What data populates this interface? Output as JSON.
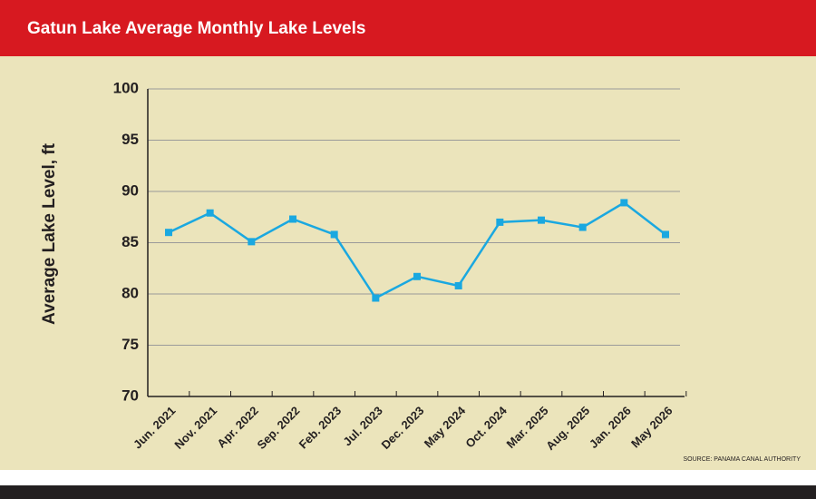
{
  "chart_data": {
    "type": "line",
    "title": "Gatun Lake Average Monthly Lake Levels",
    "y_label": "Average Lake Level, ft",
    "source": "SOURCE: PANAMA CANAL AUTHORITY",
    "categories": [
      "Jun. 2021",
      "Nov. 2021",
      "Apr. 2022",
      "Sep. 2022",
      "Feb. 2023",
      "Jul. 2023",
      "Dec. 2023",
      "May 2024",
      "Oct. 2024",
      "Mar. 2025",
      "Aug. 2025",
      "Jan. 2026",
      "May 2026"
    ],
    "values": [
      86.0,
      87.9,
      85.1,
      87.3,
      85.8,
      79.6,
      81.7,
      80.8,
      87.0,
      87.2,
      86.5,
      88.9,
      85.8
    ],
    "color": "#1aa8e0",
    "ylim": [
      70,
      100
    ],
    "yticks": [
      70,
      75,
      80,
      85,
      90,
      95,
      100
    ],
    "grid": true
  }
}
